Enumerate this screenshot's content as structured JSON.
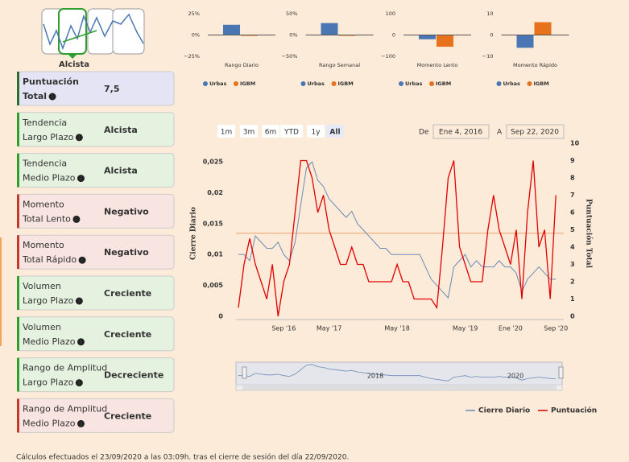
{
  "logo": {
    "label": "Alcista",
    "color": "#2e9e2e"
  },
  "sidebar": {
    "cards": [
      {
        "label": [
          "Puntuación",
          "Total"
        ],
        "value": "7,5",
        "color": "#2e8b2e",
        "background": "#e4e4f5",
        "border": "#2e6b2e"
      },
      {
        "label": [
          "Tendencia",
          "Largo Plazo"
        ],
        "value": "Alcista",
        "color": "#2e9e2e",
        "background": "#e6f2e0",
        "border": "#2e9e2e"
      },
      {
        "label": [
          "Tendencia",
          "Medio Plazo"
        ],
        "value": "Alcista",
        "color": "#2e9e2e",
        "background": "#e6f2e0",
        "border": "#2e9e2e"
      },
      {
        "label": [
          "Momento",
          "Total Lento"
        ],
        "value": "Negativo",
        "color": "#c0392b",
        "background": "#f8e4e0",
        "border": "#c0392b"
      },
      {
        "label": [
          "Momento",
          "Total Rápido"
        ],
        "value": "Negativo",
        "color": "#c0392b",
        "background": "#f8e4e0",
        "border": "#c0392b"
      },
      {
        "label": [
          "Volumen",
          "Largo Plazo"
        ],
        "value": "Creciente",
        "color": "#2e9e2e",
        "background": "#e6f2e0",
        "border": "#2e9e2e"
      },
      {
        "label": [
          "Volumen",
          "Medio Plazo"
        ],
        "value": "Creciente",
        "color": "#2e9e2e",
        "background": "#e6f2e0",
        "border": "#2e9e2e"
      },
      {
        "label": [
          "Rango de Amplitud",
          "Largo Plazo"
        ],
        "value": "Decreciente",
        "color": "#2e9e2e",
        "background": "#e6f2e0",
        "border": "#2e9e2e"
      },
      {
        "label": [
          "Rango de Amplitud",
          "Medio Plazo"
        ],
        "value": "Creciente",
        "color": "#c0392b",
        "background": "#f8e4e0",
        "border": "#c0392b"
      }
    ]
  },
  "chart_data": [
    {
      "type": "bar",
      "title": "Rango Diario",
      "ylim": [
        -25,
        25
      ],
      "yticks": [
        {
          "value": 25,
          "label": "25%"
        },
        {
          "value": 0,
          "label": "0%"
        },
        {
          "value": -25,
          "label": "−25%"
        }
      ],
      "series": [
        {
          "name": "Urbas",
          "color": "#4a77b4",
          "values": [
            12
          ]
        },
        {
          "name": "IGBM",
          "color": "#e8711c",
          "values": [
            -1
          ]
        }
      ]
    },
    {
      "type": "bar",
      "title": "Rango Semanal",
      "ylim": [
        -50,
        50
      ],
      "yticks": [
        {
          "value": 50,
          "label": "50%"
        },
        {
          "value": 0,
          "label": "0%"
        },
        {
          "value": -50,
          "label": "−50%"
        }
      ],
      "series": [
        {
          "name": "Urbas",
          "color": "#4a77b4",
          "values": [
            28
          ]
        },
        {
          "name": "IGBM",
          "color": "#e8711c",
          "values": [
            -1
          ]
        }
      ]
    },
    {
      "type": "bar",
      "title": "Momento Lento",
      "ylim": [
        -100,
        100
      ],
      "yticks": [
        100,
        0,
        {
          "value": -100,
          "label": "−100"
        }
      ],
      "series": [
        {
          "name": "Urbas",
          "color": "#4a77b4",
          "values": [
            -20
          ]
        },
        {
          "name": "IGBM",
          "color": "#e8711c",
          "values": [
            -55
          ]
        }
      ]
    },
    {
      "type": "bar",
      "title": "Momento Rápido",
      "ylim": [
        -10,
        10
      ],
      "yticks": [
        10,
        0,
        {
          "value": -10,
          "label": "−10"
        }
      ],
      "series": [
        {
          "name": "Urbas",
          "color": "#4a77b4",
          "values": [
            -6
          ]
        },
        {
          "name": "IGBM",
          "color": "#e8711c",
          "values": [
            6
          ]
        }
      ]
    },
    {
      "type": "line",
      "range_buttons": [
        "1m",
        "3m",
        "6m",
        "YTD",
        "1y",
        "All"
      ],
      "selected": 5,
      "from_label": "De",
      "from": "Ene 4, 2016",
      "to_label": "A",
      "to": "Sep 22, 2020",
      "categories": [
        null,
        null,
        null,
        null,
        null,
        null,
        null,
        null,
        "Sep '16",
        null,
        null,
        null,
        null,
        null,
        null,
        null,
        "May '17",
        null,
        null,
        null,
        null,
        null,
        null,
        null,
        null,
        null,
        null,
        null,
        "May '18",
        null,
        null,
        null,
        null,
        null,
        null,
        null,
        null,
        null,
        null,
        null,
        "May '19",
        null,
        null,
        null,
        null,
        null,
        null,
        null,
        "Ene '20",
        null,
        null,
        null,
        null,
        null,
        null,
        null,
        "Sep '20"
      ],
      "y_label": "Cierre Diario",
      "y2_label": "Puntuación Total",
      "ylim": [
        0,
        0.028
      ],
      "yticks": [
        0,
        {
          "value": 0.005,
          "label": "0,005"
        },
        {
          "value": 0.01,
          "label": "0,01"
        },
        {
          "value": 0.015,
          "label": "0,015"
        },
        {
          "value": 0.02,
          "label": "0,02"
        },
        {
          "value": 0.025,
          "label": "0,025"
        }
      ],
      "y2lim": [
        0,
        10
      ],
      "y2ticks": [
        0,
        1,
        2,
        3,
        4,
        5,
        6,
        7,
        8,
        9,
        10
      ],
      "reference_line": {
        "value": 4.8,
        "axis": "y2",
        "color": "#f0a878"
      },
      "series": [
        {
          "name": "Cierre Diario",
          "color": "#6b8ab5",
          "values": [
            0.01,
            0.01,
            0.009,
            0.013,
            0.012,
            0.011,
            0.011,
            0.012,
            0.01,
            0.009,
            0.012,
            0.018,
            0.024,
            0.025,
            0.022,
            0.021,
            0.019,
            0.018,
            0.017,
            0.016,
            0.017,
            0.015,
            0.014,
            0.013,
            0.012,
            0.011,
            0.011,
            0.01,
            0.01,
            0.01,
            0.01,
            0.01,
            0.01,
            0.008,
            0.006,
            0.005,
            0.004,
            0.003,
            0.008,
            0.009,
            0.01,
            0.008,
            0.009,
            0.008,
            0.008,
            0.008,
            0.009,
            0.008,
            0.008,
            0.007,
            0.004,
            0.006,
            0.007,
            0.008,
            0.007,
            0.006,
            0.006
          ]
        },
        {
          "name": "Puntuación",
          "color": "#e00000",
          "axis": "y2",
          "values": [
            0.5,
            3,
            4.5,
            3,
            2,
            1,
            3,
            0,
            2,
            3,
            6,
            9,
            9,
            8,
            6,
            7,
            5,
            4,
            3,
            3,
            4,
            3,
            3,
            2,
            2,
            2,
            2,
            2,
            3,
            2,
            2,
            1,
            1,
            1,
            1,
            0.5,
            4,
            8,
            9,
            4,
            3,
            2,
            2,
            2,
            5,
            7,
            5,
            4,
            3,
            5,
            1,
            6,
            9,
            4,
            5,
            1,
            7
          ]
        }
      ],
      "navigator_labels": [
        "2018",
        "2020"
      ],
      "grid": false
    }
  ],
  "footer": "Cálculos efectuados el 23/09/2020 a las 03:09h. tras el cierre de sesión del día 22/09/2020."
}
